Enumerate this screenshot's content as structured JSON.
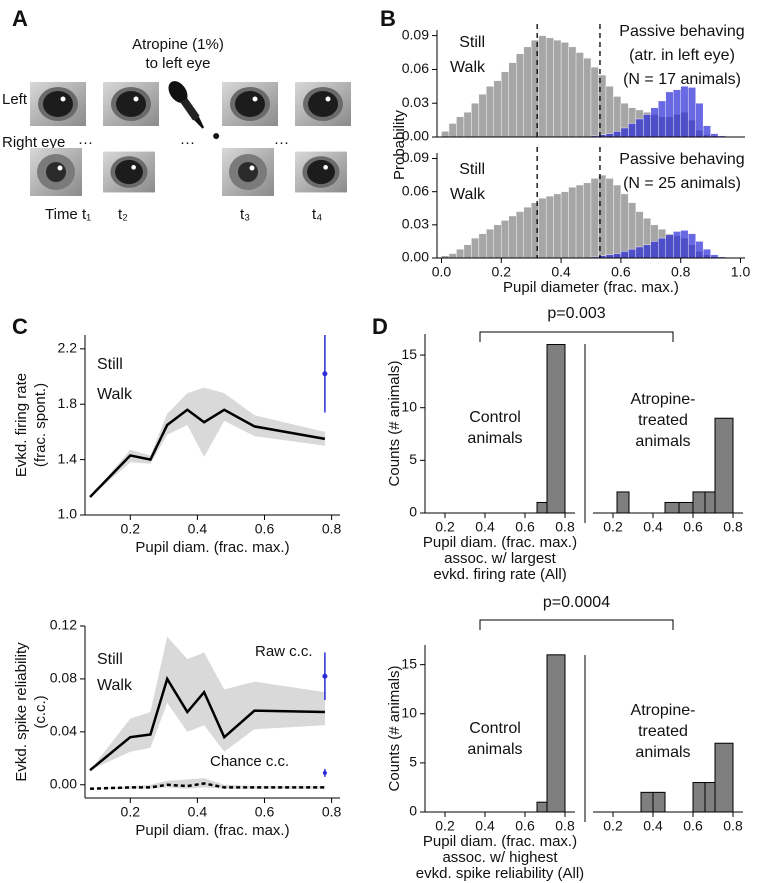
{
  "panel_a": {
    "label": "A",
    "drug": [
      "Atropine (1%)",
      "to left eye"
    ],
    "left_eye": "Left eye",
    "right_eye": "Right eye",
    "ellipsis": "···",
    "times": [
      "Time t₁",
      "t₂",
      "t₃",
      "t₄"
    ]
  },
  "chart_data": [
    {
      "type": "histogram",
      "panel": "B",
      "ylabel": "Probability",
      "annotation": [
        "Passive behaving",
        "(atr. in left eye)",
        "(N = 17 animals)"
      ],
      "vlines": [
        0.32,
        0.53
      ],
      "bins": [
        0,
        0.025,
        0.05,
        0.075,
        0.1,
        0.125,
        0.15,
        0.175,
        0.2,
        0.225,
        0.25,
        0.275,
        0.3,
        0.325,
        0.35,
        0.375,
        0.4,
        0.425,
        0.45,
        0.475,
        0.5,
        0.525,
        0.55,
        0.575,
        0.6,
        0.625,
        0.65,
        0.675,
        0.7,
        0.725,
        0.75,
        0.775,
        0.8,
        0.825,
        0.85,
        0.875,
        0.9,
        0.925,
        0.95,
        0.975,
        1.0
      ],
      "series": [
        {
          "name": "Still",
          "color": "#a6a6a6",
          "values": [
            0.005,
            0.012,
            0.018,
            0.022,
            0.03,
            0.038,
            0.045,
            0.05,
            0.058,
            0.066,
            0.074,
            0.08,
            0.086,
            0.09,
            0.088,
            0.086,
            0.084,
            0.08,
            0.075,
            0.07,
            0.062,
            0.055,
            0.045,
            0.036,
            0.03,
            0.026,
            0.024,
            0.022,
            0.02,
            0.018,
            0.018,
            0.02,
            0.022,
            0.015,
            0.006,
            0.002,
            0.001,
            0,
            0,
            0
          ]
        },
        {
          "name": "Walk",
          "color": "#2a2ad8",
          "values": [
            0,
            0,
            0,
            0,
            0,
            0,
            0,
            0,
            0,
            0,
            0,
            0,
            0,
            0,
            0,
            0,
            0,
            0,
            0,
            0,
            0.001,
            0.002,
            0.003,
            0.005,
            0.008,
            0.012,
            0.016,
            0.02,
            0.026,
            0.032,
            0.04,
            0.042,
            0.045,
            0.044,
            0.03,
            0.01,
            0.003,
            0.001,
            0,
            0
          ]
        }
      ],
      "xlim": [
        -0.015,
        1.015
      ],
      "ylim": [
        0,
        0.095
      ],
      "yticks": [
        {
          "value": 0,
          "label": "0.00"
        },
        0.03,
        0.06,
        0.09
      ]
    },
    {
      "type": "histogram",
      "annotation": [
        "Passive behaving",
        "(N = 25 animals)"
      ],
      "vlines": [
        0.32,
        0.53
      ],
      "bins": [
        0,
        0.025,
        0.05,
        0.075,
        0.1,
        0.125,
        0.15,
        0.175,
        0.2,
        0.225,
        0.25,
        0.275,
        0.3,
        0.325,
        0.35,
        0.375,
        0.4,
        0.425,
        0.45,
        0.475,
        0.5,
        0.525,
        0.55,
        0.575,
        0.6,
        0.625,
        0.65,
        0.675,
        0.7,
        0.725,
        0.75,
        0.775,
        0.8,
        0.825,
        0.85,
        0.875,
        0.9,
        0.925,
        0.95,
        0.975,
        1.0
      ],
      "series": [
        {
          "name": "Still",
          "color": "#a6a6a6",
          "values": [
            0.002,
            0.004,
            0.008,
            0.012,
            0.018,
            0.022,
            0.026,
            0.03,
            0.034,
            0.038,
            0.042,
            0.046,
            0.05,
            0.054,
            0.056,
            0.058,
            0.06,
            0.064,
            0.066,
            0.068,
            0.072,
            0.075,
            0.072,
            0.066,
            0.058,
            0.05,
            0.042,
            0.036,
            0.03,
            0.026,
            0.022,
            0.02,
            0.018,
            0.012,
            0.006,
            0.003,
            0.001,
            0,
            0,
            0
          ]
        },
        {
          "name": "Walk",
          "color": "#2a2ad8",
          "values": [
            0,
            0,
            0,
            0,
            0,
            0,
            0,
            0,
            0,
            0,
            0,
            0,
            0,
            0,
            0,
            0,
            0,
            0,
            0,
            0,
            0.001,
            0.002,
            0.003,
            0.004,
            0.006,
            0.008,
            0.01,
            0.012,
            0.015,
            0.018,
            0.021,
            0.024,
            0.025,
            0.022,
            0.015,
            0.008,
            0.003,
            0.001,
            0,
            0
          ]
        }
      ],
      "xlim": [
        -0.015,
        1.015
      ],
      "ylim": [
        0,
        0.095
      ],
      "yticks": [
        {
          "value": 0,
          "label": "0.00"
        },
        0.03,
        0.06,
        0.09
      ],
      "xticks": [
        {
          "value": 0,
          "label": "0.0"
        },
        0.2,
        0.4,
        0.6,
        0.8,
        {
          "value": 1,
          "label": "1.0"
        }
      ],
      "xlabel": "Pupil diameter (frac. max.)"
    },
    {
      "type": "line",
      "panel": "C",
      "ylabel": [
        "Evkd. firing rate",
        "(frac. spont.)"
      ],
      "xlabel": "Pupil diam. (frac. max.)",
      "x": [
        0.08,
        0.2,
        0.26,
        0.31,
        0.37,
        0.42,
        0.48,
        0.57,
        0.78
      ],
      "series": [
        {
          "name": "Still",
          "color": "#000000",
          "values": [
            1.13,
            1.43,
            1.4,
            1.65,
            1.76,
            1.67,
            1.76,
            1.64,
            1.55
          ],
          "lower": [
            1.13,
            1.38,
            1.37,
            1.58,
            1.65,
            1.42,
            1.68,
            1.57,
            1.5
          ],
          "upper": [
            1.13,
            1.47,
            1.43,
            1.73,
            1.88,
            1.92,
            1.88,
            1.72,
            1.6
          ]
        },
        {
          "name": "Walk",
          "color": "#2a2ad8",
          "x": [
            0.78
          ],
          "values": [
            2.02
          ],
          "errors": [
            0.28
          ]
        }
      ],
      "xlim": [
        0.065,
        0.825
      ],
      "ylim": [
        1.0,
        2.3
      ],
      "xticks": [
        0.2,
        0.4,
        0.6,
        0.8
      ],
      "yticks": [
        {
          "value": 1,
          "label": "1.0"
        },
        1.4,
        1.8,
        2.2
      ]
    },
    {
      "type": "line",
      "ylabel": [
        "Evkd. spike reliability",
        "(c.c.)"
      ],
      "xlabel": "Pupil diam. (frac. max.)",
      "annotation": [
        "Raw c.c.",
        "Chance c.c."
      ],
      "x": [
        0.08,
        0.2,
        0.26,
        0.31,
        0.37,
        0.42,
        0.48,
        0.57,
        0.78
      ],
      "series": [
        {
          "name": "Still",
          "color": "#000000",
          "values": [
            0.011,
            0.036,
            0.038,
            0.08,
            0.055,
            0.07,
            0.036,
            0.056,
            0.055
          ],
          "lower": [
            0.011,
            0.025,
            0.028,
            0.062,
            0.04,
            0.045,
            0.025,
            0.042,
            0.045
          ],
          "upper": [
            0.011,
            0.05,
            0.055,
            0.112,
            0.095,
            0.1,
            0.072,
            0.078,
            0.07
          ],
          "chance": [
            -0.003,
            -0.002,
            -0.002,
            0,
            -0.001,
            0.001,
            -0.002,
            -0.002,
            -0.002
          ],
          "chance_lower": [
            -0.003,
            -0.003,
            -0.003,
            -0.002,
            -0.003,
            -0.002,
            -0.003,
            -0.003,
            -0.003
          ],
          "chance_upper": [
            -0.003,
            -0.001,
            0,
            0.003,
            0.004,
            0.005,
            0,
            -0.001,
            -0.001
          ]
        },
        {
          "name": "Walk",
          "color": "#2a2ad8",
          "x": [
            0.78
          ],
          "values": [
            0.082
          ],
          "errors": [
            0.018
          ],
          "chance": [
            0.009
          ],
          "chance_errors": [
            0.003
          ]
        }
      ],
      "xlim": [
        0.065,
        0.825
      ],
      "ylim": [
        -0.01,
        0.12
      ],
      "xticks": [
        0.2,
        0.4,
        0.6,
        0.8
      ],
      "yticks": [
        {
          "value": 0,
          "label": "0.00"
        },
        0.04,
        0.08,
        0.12
      ]
    },
    {
      "type": "paired-histogram",
      "panel": "D",
      "color": "#7f7f7f",
      "ylabel": "Counts (# animals)",
      "xlabel": [
        "Pupil diam. (frac. max.)",
        "assoc. w/ largest",
        "evkd. firing rate (All)"
      ],
      "pvalue": "p=0.003",
      "bins": [
        0.16,
        0.22,
        0.28,
        0.34,
        0.4,
        0.46,
        0.53,
        0.6,
        0.66,
        0.71,
        0.8
      ],
      "panels": [
        {
          "text": [
            "Control",
            "animals"
          ],
          "counts": [
            0,
            0,
            0,
            0,
            0,
            0,
            0,
            0,
            1,
            16
          ]
        },
        {
          "text": [
            "Atropine-",
            "treated",
            "animals"
          ],
          "counts": [
            0,
            2,
            0,
            0,
            0,
            1,
            1,
            2,
            2,
            9
          ]
        }
      ],
      "xlim": [
        0.1,
        0.85
      ],
      "ylim": [
        0,
        17
      ],
      "xticks": [
        0.2,
        0.4,
        0.6,
        0.8
      ],
      "yticks": [
        0,
        5,
        10,
        15
      ]
    },
    {
      "type": "paired-histogram",
      "color": "#7f7f7f",
      "ylabel": "Counts (# animals)",
      "xlabel": [
        "Pupil diam. (frac. max.)",
        "assoc. w/ highest",
        "evkd. spike reliability (All)"
      ],
      "pvalue": "p=0.0004",
      "bins": [
        0.16,
        0.22,
        0.28,
        0.34,
        0.4,
        0.46,
        0.53,
        0.6,
        0.66,
        0.71,
        0.8
      ],
      "panels": [
        {
          "text": [
            "Control",
            "animals"
          ],
          "counts": [
            0,
            0,
            0,
            0,
            0,
            0,
            0,
            0,
            1,
            16
          ]
        },
        {
          "text": [
            "Atropine-",
            "treated",
            "animals"
          ],
          "counts": [
            0,
            0,
            0,
            2,
            2,
            0,
            0,
            3,
            3,
            7
          ]
        }
      ],
      "xlim": [
        0.1,
        0.85
      ],
      "ylim": [
        0,
        17
      ],
      "xticks": [
        0.2,
        0.4,
        0.6,
        0.8
      ],
      "yticks": [
        0,
        5,
        10,
        15
      ]
    }
  ]
}
